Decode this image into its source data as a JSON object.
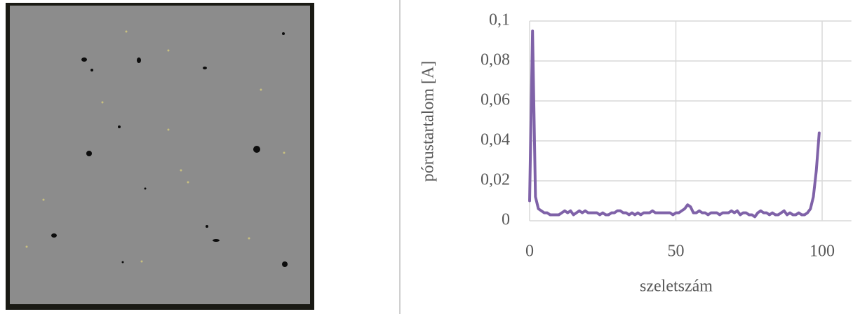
{
  "chart_data": {
    "type": "line",
    "x_label": "szeletszám",
    "y_label": "pórustartalom [A]",
    "x": [
      0,
      1,
      2,
      3,
      4,
      5,
      6,
      7,
      8,
      9,
      10,
      11,
      12,
      13,
      14,
      15,
      16,
      17,
      18,
      19,
      20,
      21,
      22,
      23,
      24,
      25,
      26,
      27,
      28,
      29,
      30,
      31,
      32,
      33,
      34,
      35,
      36,
      37,
      38,
      39,
      40,
      41,
      42,
      43,
      44,
      45,
      46,
      47,
      48,
      49,
      50,
      51,
      52,
      53,
      54,
      55,
      56,
      57,
      58,
      59,
      60,
      61,
      62,
      63,
      64,
      65,
      66,
      67,
      68,
      69,
      70,
      71,
      72,
      73,
      74,
      75,
      76,
      77,
      78,
      79,
      80,
      81,
      82,
      83,
      84,
      85,
      86,
      87,
      88,
      89,
      90,
      91,
      92,
      93,
      94,
      95,
      96,
      97,
      98,
      99
    ],
    "values": [
      0.01,
      0.095,
      0.012,
      0.006,
      0.005,
      0.004,
      0.004,
      0.003,
      0.003,
      0.003,
      0.003,
      0.004,
      0.005,
      0.004,
      0.005,
      0.003,
      0.004,
      0.005,
      0.004,
      0.005,
      0.004,
      0.004,
      0.004,
      0.004,
      0.003,
      0.004,
      0.003,
      0.003,
      0.004,
      0.004,
      0.005,
      0.005,
      0.004,
      0.004,
      0.003,
      0.004,
      0.003,
      0.004,
      0.003,
      0.004,
      0.004,
      0.004,
      0.005,
      0.004,
      0.004,
      0.004,
      0.004,
      0.004,
      0.004,
      0.003,
      0.004,
      0.004,
      0.005,
      0.006,
      0.008,
      0.007,
      0.004,
      0.004,
      0.005,
      0.004,
      0.004,
      0.003,
      0.004,
      0.004,
      0.004,
      0.003,
      0.004,
      0.004,
      0.004,
      0.005,
      0.004,
      0.005,
      0.003,
      0.004,
      0.004,
      0.003,
      0.003,
      0.002,
      0.004,
      0.005,
      0.004,
      0.004,
      0.003,
      0.004,
      0.003,
      0.003,
      0.004,
      0.005,
      0.003,
      0.004,
      0.003,
      0.003,
      0.004,
      0.003,
      0.003,
      0.004,
      0.006,
      0.012,
      0.025,
      0.044
    ],
    "color": "#7f62a8",
    "xlim": [
      0,
      110
    ],
    "xticks": [
      0,
      50,
      100
    ],
    "ylim": [
      0,
      0.1
    ],
    "yticks": [
      0,
      {
        "value": 0.02,
        "label": "0,02"
      },
      {
        "value": 0.04,
        "label": "0,04"
      },
      {
        "value": 0.06,
        "label": "0,06"
      },
      {
        "value": 0.08,
        "label": "0,08"
      },
      {
        "value": 0.1,
        "label": "0,1"
      }
    ],
    "grid": true
  }
}
